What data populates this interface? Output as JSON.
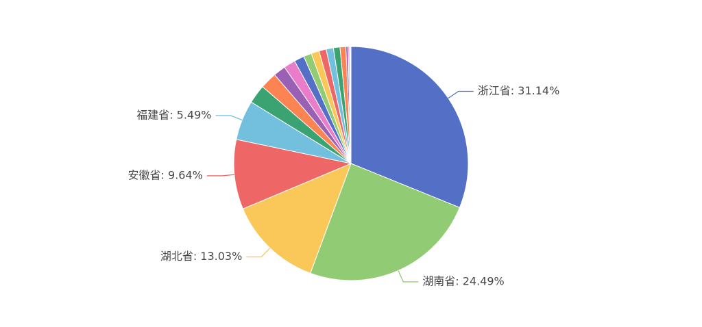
{
  "chart_data": {
    "type": "pie",
    "values": [
      31.14,
      24.49,
      13.03,
      9.64,
      5.49,
      2.6,
      2.3,
      1.7,
      1.6,
      1.4,
      1.1,
      1.1,
      1.0,
      1.0,
      0.9,
      0.8,
      0.3,
      0.2,
      0.1,
      0.1
    ],
    "value_labels": [
      "浙江省: 31.14%",
      "湖南省: 24.49%",
      "湖北省: 13.03%",
      "安徽省: 9.64%",
      "福建省: 5.49%",
      null,
      null,
      null,
      null,
      null,
      null,
      null,
      null,
      null,
      null,
      null,
      null,
      null,
      null,
      null
    ],
    "colors": [
      "#5470c6",
      "#91cc75",
      "#fac858",
      "#ee6666",
      "#73c0de",
      "#3ba272",
      "#fc8452",
      "#9a60b4",
      "#ea7ccc",
      "#5470c6",
      "#91cc75",
      "#fac858",
      "#ee6666",
      "#73c0de",
      "#3ba272",
      "#fc8452",
      "#9a60b4",
      "#ea7ccc",
      "#5470c6",
      "#91cc75"
    ]
  }
}
